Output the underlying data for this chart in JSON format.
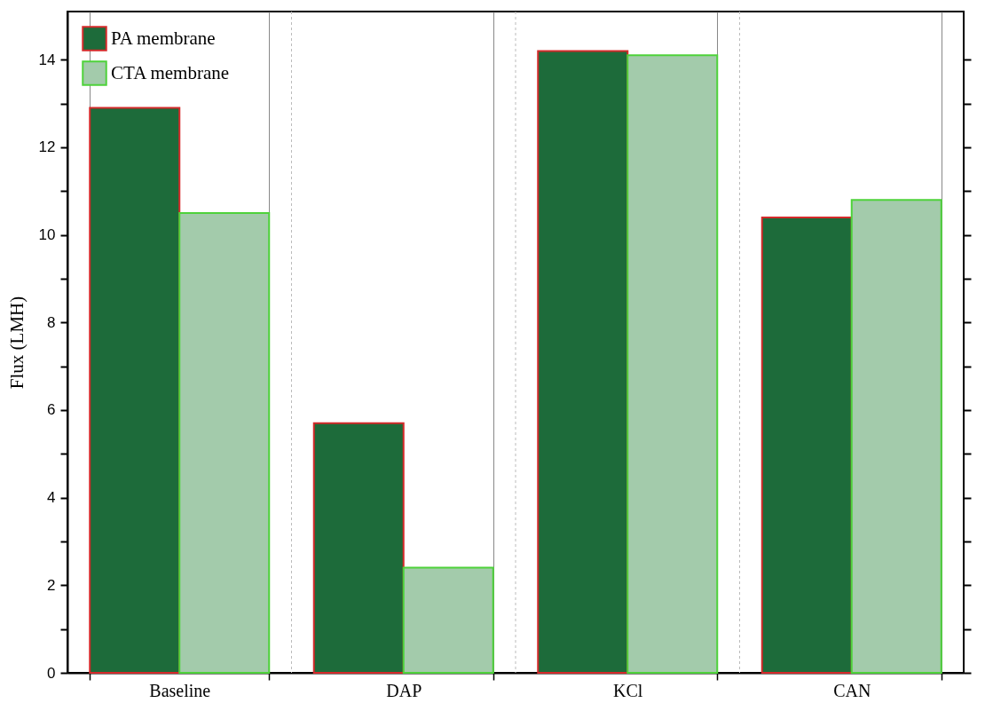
{
  "chart_data": {
    "type": "bar",
    "ylabel": "Flux (LMH)",
    "categories": [
      "Baseline",
      "DAP",
      "KCl",
      "CAN"
    ],
    "series": [
      {
        "name": "PA membrane",
        "color": "#1d6b3a",
        "values": [
          12.9,
          5.7,
          14.2,
          10.4
        ]
      },
      {
        "name": "CTA membrane",
        "color": "#a3cbab",
        "values": [
          10.5,
          2.4,
          14.1,
          10.8
        ]
      }
    ],
    "ylim": [
      0,
      15.1
    ],
    "yticks": [
      0,
      {
        "value": 1,
        "label": null
      },
      2,
      {
        "value": 3,
        "label": null
      },
      4,
      {
        "value": 5,
        "label": null
      },
      6,
      {
        "value": 7,
        "label": null
      },
      8,
      {
        "value": 9,
        "label": null
      },
      10,
      {
        "value": 11,
        "label": null
      },
      12,
      {
        "value": 13,
        "label": null
      },
      14
    ],
    "grid": "x",
    "legend": "top left"
  }
}
